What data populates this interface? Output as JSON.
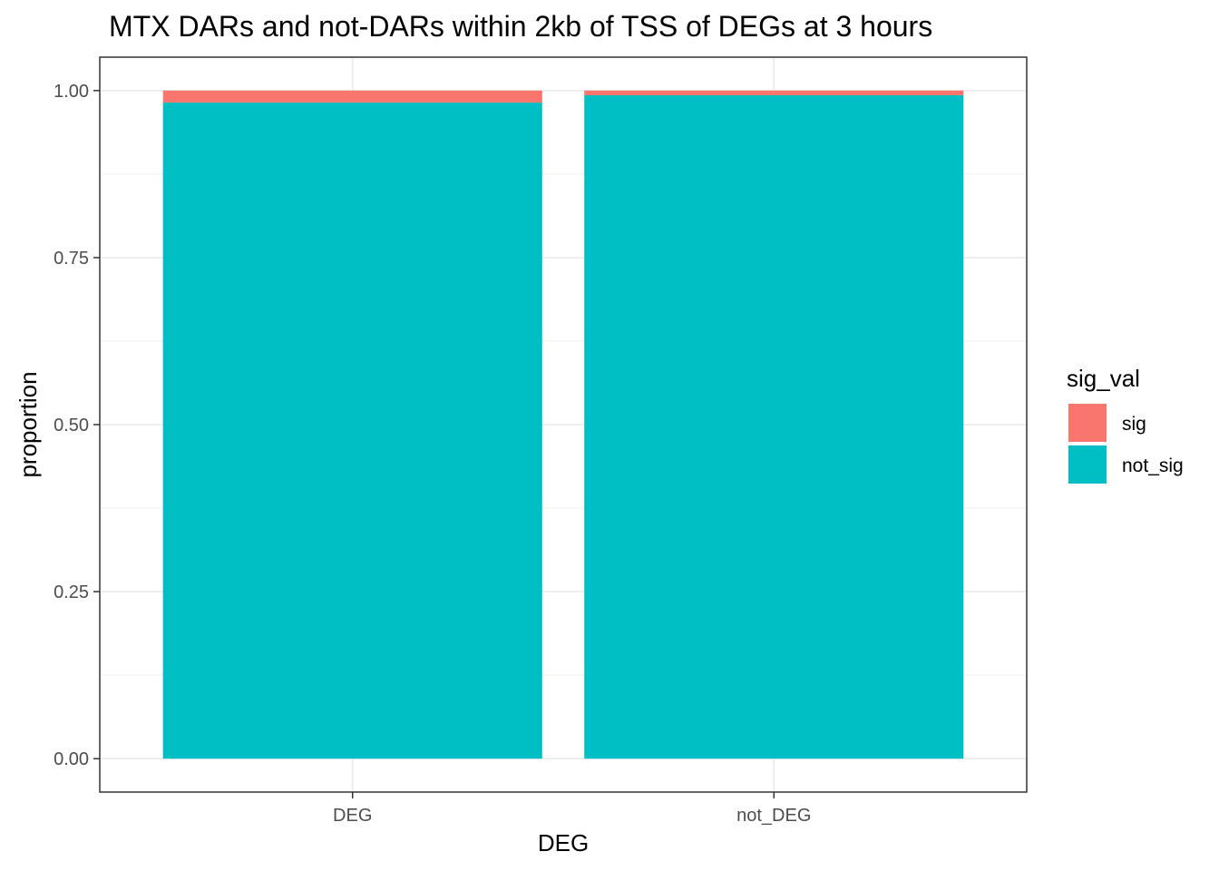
{
  "chart_data": {
    "type": "bar",
    "stacked": true,
    "title": "MTX DARs and not-DARs within 2kb of TSS of DEGs at 3 hours",
    "xlabel": "DEG",
    "ylabel": "proportion",
    "categories": [
      "DEG",
      "not_DEG"
    ],
    "series": [
      {
        "name": "not_sig",
        "color": "#00BFC4",
        "values": [
          0.982,
          0.993
        ]
      },
      {
        "name": "sig",
        "color": "#F8766D",
        "values": [
          0.018,
          0.007
        ]
      }
    ],
    "ylim": [
      -0.05,
      1.05
    ],
    "yticks": [
      0,
      0.25,
      0.5,
      0.75,
      1.0
    ],
    "ytick_labels": [
      "0.00",
      "0.25",
      "0.50",
      "0.75",
      "1.00"
    ],
    "grid": true,
    "legend": {
      "title": "sig_val",
      "position": "right",
      "entries": [
        {
          "label": "sig",
          "color": "#F8766D"
        },
        {
          "label": "not_sig",
          "color": "#00BFC4"
        }
      ]
    }
  }
}
